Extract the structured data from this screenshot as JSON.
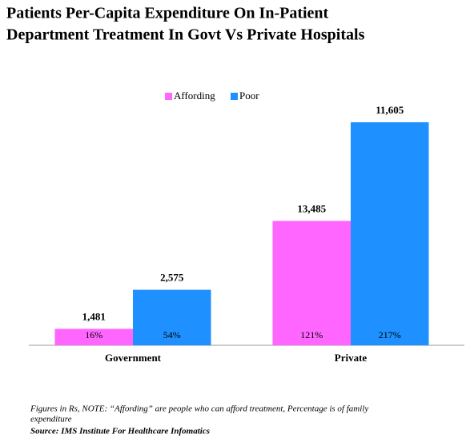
{
  "chart_data": {
    "type": "bar",
    "title": "Patients Per-Capita Expenditure On In-Patient",
    "subtitle": "Department Treatment In Govt Vs Private Hospitals",
    "categories": [
      "Government",
      "Private"
    ],
    "series": [
      {
        "name": "Affording",
        "color": "#ff66ff",
        "values": [
          16,
          121
        ],
        "value_labels": [
          "16%",
          "121%"
        ],
        "amounts": [
          "1,481",
          "13,485"
        ]
      },
      {
        "name": "Poor",
        "color": "#1e90ff",
        "values": [
          54,
          217
        ],
        "value_labels": [
          "54%",
          "217%"
        ],
        "amounts": [
          "2,575",
          "11,605"
        ]
      }
    ],
    "ylim": [
      0,
      250
    ],
    "legend": "top",
    "notes": [
      "Figures in Rs, NOTE: “Affording” are people who can afford treatment, Percentage is of family",
      "expenditure"
    ],
    "source": "Source: IMS Institute For Healthcare Infomatics"
  }
}
